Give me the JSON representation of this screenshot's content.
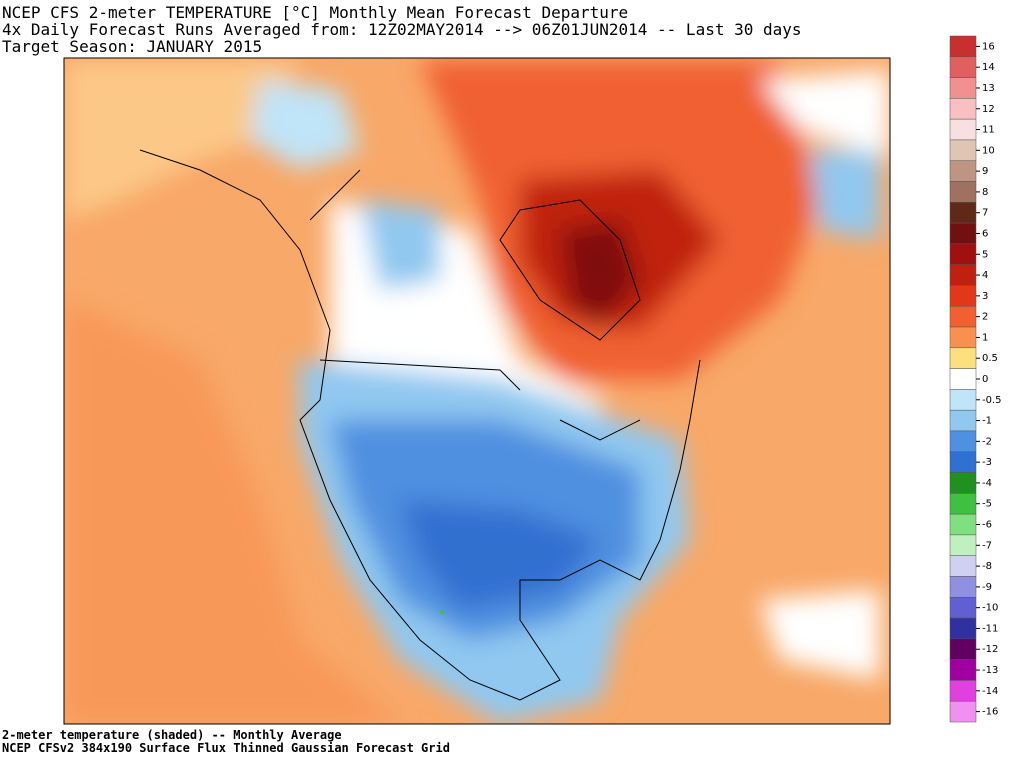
{
  "header": {
    "lines": [
      "NCEP CFS 2-meter TEMPERATURE [°C] Monthly Mean Forecast Departure",
      "4x Daily Forecast Runs Averaged from: 12Z02MAY2014 --> 06Z01JUN2014 -- Last 30 days",
      "Target Season: JANUARY 2015"
    ]
  },
  "footer": {
    "lines": [
      "2-meter temperature (shaded) -- Monthly Average",
      "NCEP CFSv2 384x190 Surface Flux Thinned Gaussian Forecast Grid"
    ]
  },
  "colorbar": {
    "ticks": [
      16,
      14,
      13,
      12,
      11,
      10,
      9,
      8,
      7,
      6,
      5,
      4,
      3,
      2,
      1,
      0.5,
      0,
      -0.5,
      -1,
      -2,
      -3,
      -4,
      -5,
      -6,
      -7,
      -8,
      -9,
      -10,
      -11,
      -12,
      -13,
      -14,
      -16
    ],
    "colors": [
      "#c83030",
      "#e06060",
      "#f09090",
      "#f8c0c0",
      "#f8e0e0",
      "#e0c4b4",
      "#c09482",
      "#a07060",
      "#602818",
      "#701010",
      "#a01010",
      "#c02010",
      "#e03818",
      "#f06030",
      "#f89050",
      "#fce080",
      "#ffffff",
      "#c0e4f8",
      "#90c8f0",
      "#5090e0",
      "#3070d0",
      "#209020",
      "#40c040",
      "#80e080",
      "#c0f0c0",
      "#d0d0f0",
      "#9090e0",
      "#6060d0",
      "#3030a0",
      "#600060",
      "#a000a0",
      "#e040e0",
      "#f090f0"
    ]
  }
}
